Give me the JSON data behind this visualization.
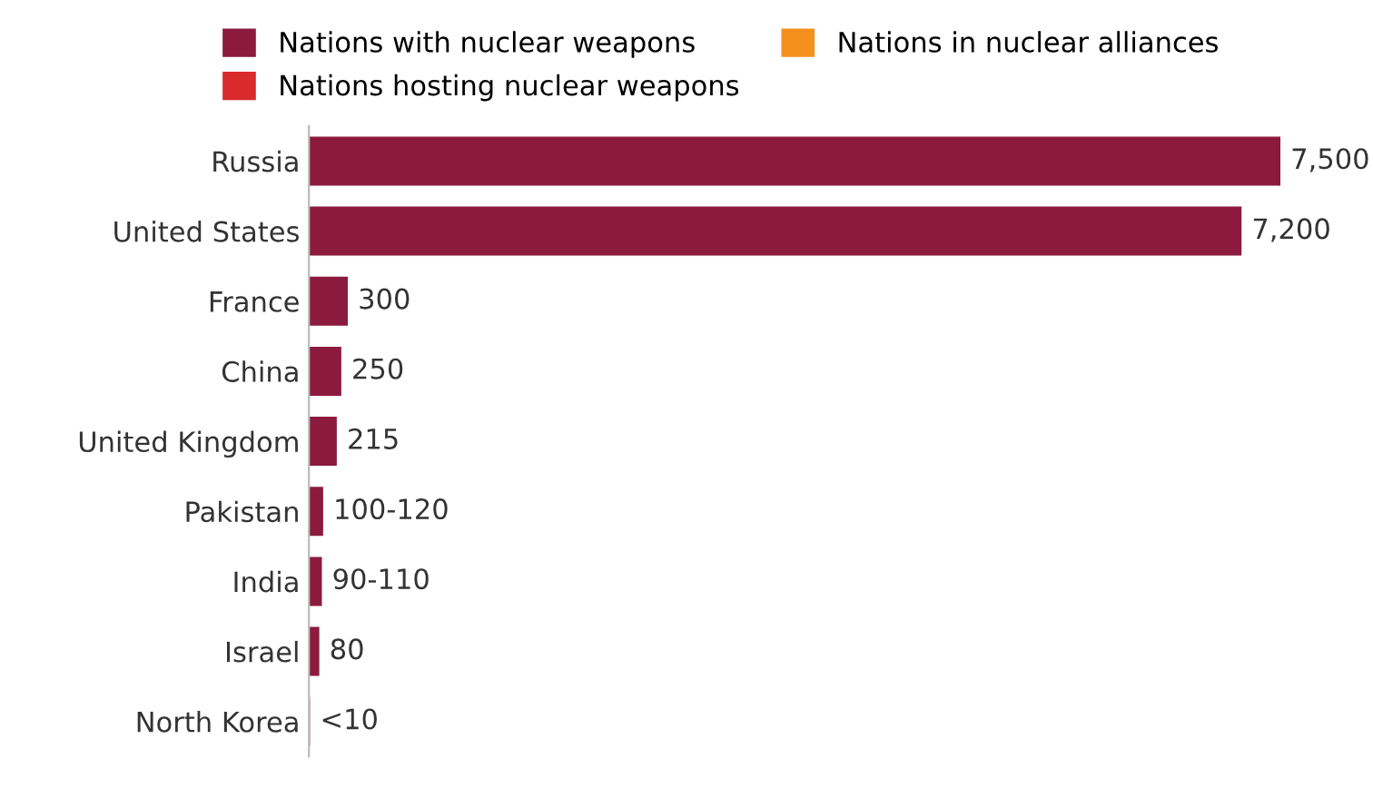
{
  "chart_data": {
    "type": "bar",
    "orientation": "horizontal",
    "categories": [
      "Russia",
      "United States",
      "France",
      "China",
      "United Kingdom",
      "Pakistan",
      "India",
      "Israel",
      "North Korea"
    ],
    "series": [
      {
        "name": "Nations with nuclear weapons",
        "color": "#8b1a3e",
        "values": [
          7500,
          7200,
          300,
          250,
          215,
          110,
          100,
          80,
          8
        ],
        "value_labels": [
          "7,500",
          "7,200",
          "300",
          "250",
          "215",
          "100-120",
          "90-110",
          "80",
          "<10"
        ]
      },
      {
        "name": "Nations hosting nuclear weapons",
        "color": "#d92b2b",
        "values": [
          null,
          null,
          null,
          null,
          null,
          null,
          null,
          null,
          null
        ]
      },
      {
        "name": "Nations in nuclear alliances",
        "color": "#f5901e",
        "values": [
          null,
          null,
          null,
          null,
          null,
          null,
          null,
          null,
          null
        ]
      }
    ],
    "tick_labels": "y",
    "legend": "top",
    "grid": false
  }
}
